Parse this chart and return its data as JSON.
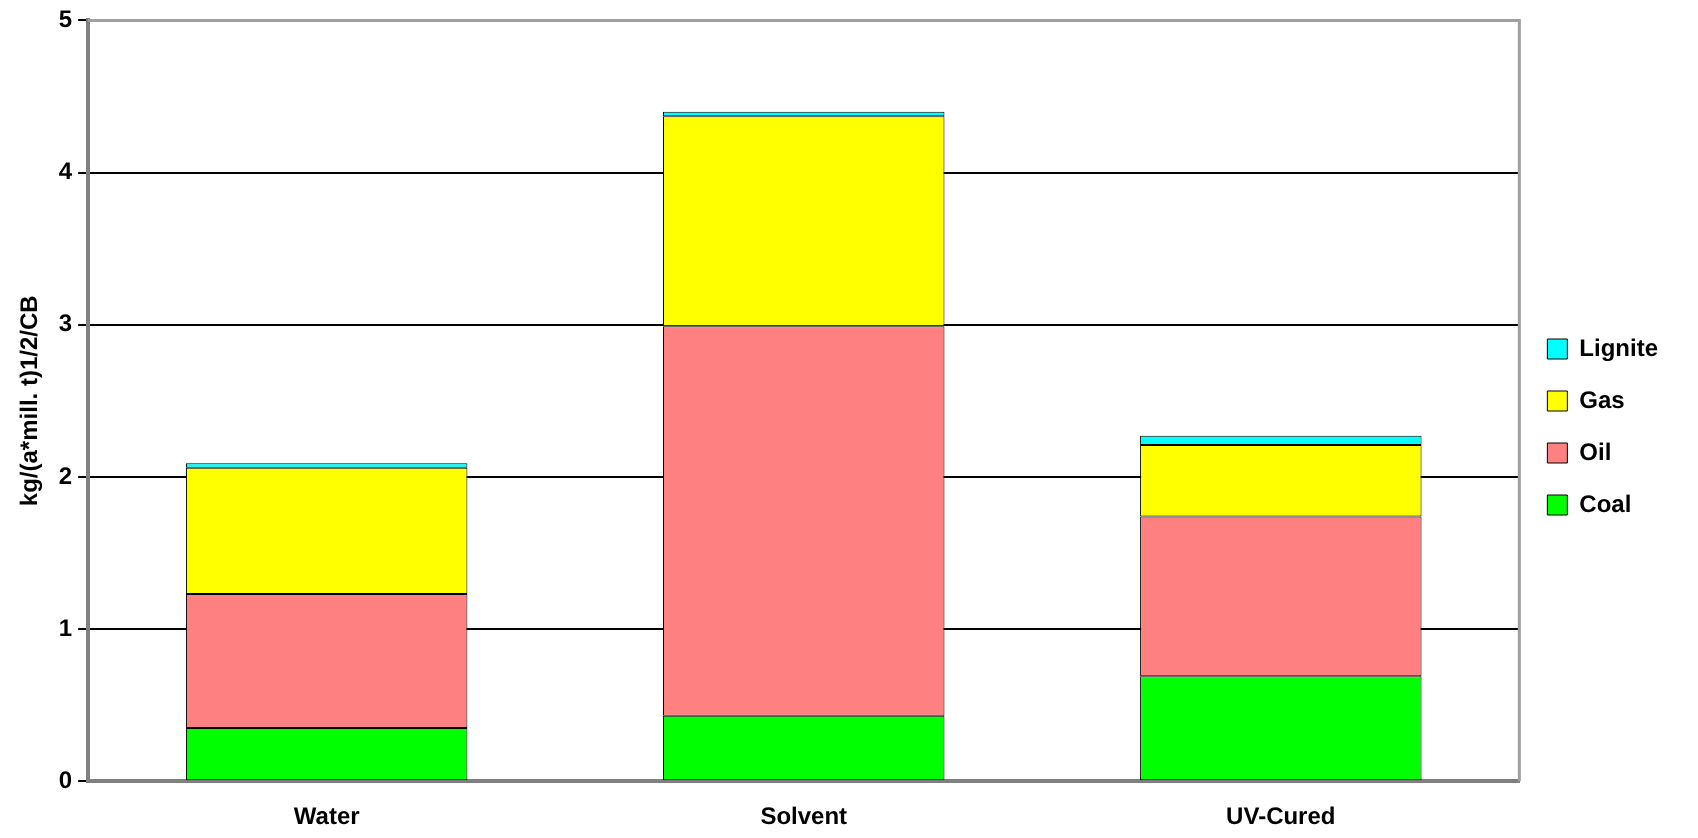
{
  "chart_data": {
    "type": "bar",
    "stacked": true,
    "ylabel": "kg/(a*mill. t)1/2/CB",
    "categories": [
      "Water",
      "Solvent",
      "UV-Cured"
    ],
    "series": [
      {
        "name": "Coal",
        "color": "#00ff00",
        "values": [
          0.35,
          0.43,
          0.69
        ]
      },
      {
        "name": "Oil",
        "color": "#ff8080",
        "values": [
          0.88,
          2.56,
          1.05
        ]
      },
      {
        "name": "Gas",
        "color": "#ffff00",
        "values": [
          0.83,
          1.38,
          0.47
        ]
      },
      {
        "name": "Lignite",
        "color": "#00ffff",
        "values": [
          0.03,
          0.03,
          0.06
        ]
      }
    ],
    "ylim": [
      0,
      5
    ],
    "yticks": [
      0,
      1,
      2,
      3,
      4,
      5
    ],
    "grid": "y",
    "legend": "right"
  }
}
